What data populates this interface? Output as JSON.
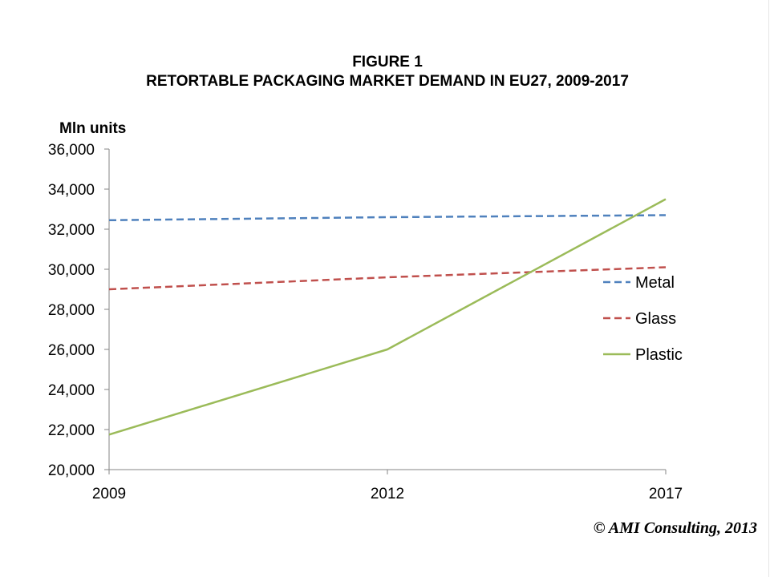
{
  "chart_data": {
    "type": "line",
    "title": "FIGURE 1",
    "subtitle": "RETORTABLE PACKAGING MARKET DEMAND IN EU27, 2009-2017",
    "ylabel": "Mln units",
    "xlabel": "",
    "x": [
      "2009",
      "2012",
      "2017"
    ],
    "ylim": [
      20000,
      36000
    ],
    "yticks": [
      "20,000",
      "22,000",
      "24,000",
      "26,000",
      "28,000",
      "30,000",
      "32,000",
      "34,000",
      "36,000"
    ],
    "ytick_values": [
      20000,
      22000,
      24000,
      26000,
      28000,
      30000,
      32000,
      34000,
      36000
    ],
    "grid": false,
    "legend_position": "right",
    "series": [
      {
        "name": "Metal",
        "values": [
          32450,
          32600,
          32700
        ],
        "color": "#4f81bd",
        "style": "dashed"
      },
      {
        "name": "Glass",
        "values": [
          29000,
          29600,
          30100
        ],
        "color": "#c0504d",
        "style": "dashed"
      },
      {
        "name": "Plastic",
        "values": [
          21750,
          26000,
          33500
        ],
        "color": "#9bbb59",
        "style": "solid"
      }
    ]
  },
  "footer": {
    "copyright": "© AMI Consulting, 2013"
  }
}
